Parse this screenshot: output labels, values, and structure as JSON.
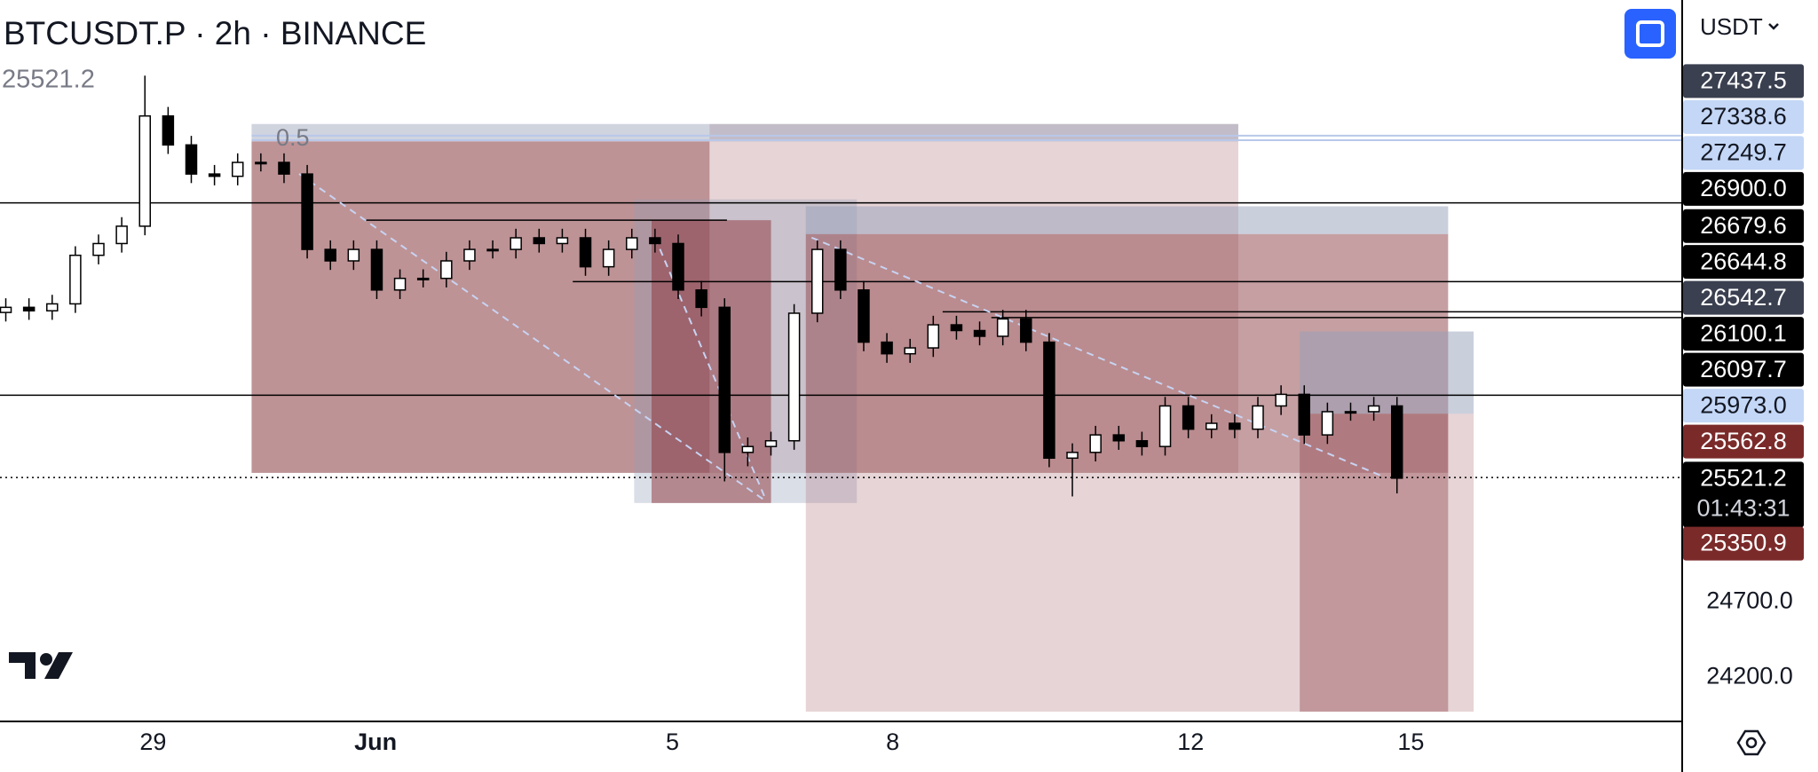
{
  "chart_data": {
    "type": "candlestick",
    "title": "BTCUSDT.P · 2h · BINANCE",
    "last_price": 25521.2,
    "currency": "USDT",
    "countdown": "01:43:31",
    "annotations": [
      "0.5"
    ],
    "xlim": [
      -0.25,
      72.3
    ],
    "ylim": [
      23908,
      28692
    ],
    "xticks": [
      {
        "value": 6.35,
        "label": "29"
      },
      {
        "value": 15.95,
        "label": "Jun"
      },
      {
        "value": 28.75,
        "label": "5"
      },
      {
        "value": 38.25,
        "label": "8"
      },
      {
        "value": 51.1,
        "label": "12"
      },
      {
        "value": 60.6,
        "label": "15"
      }
    ],
    "yticks": [
      {
        "value": 24700,
        "label": "24700.0"
      },
      {
        "value": 24200,
        "label": "24200.0"
      }
    ],
    "up_color": "#ffffff",
    "down_color": "#000000",
    "open": [
      26620,
      26654,
      26631,
      26677,
      26999,
      27077,
      27192,
      27923,
      27731,
      27538,
      27523,
      27615,
      27615,
      27538,
      27038,
      26962,
      27038,
      26769,
      26846,
      26846,
      26962,
      27038,
      27038,
      27115,
      27077,
      27115,
      26923,
      27038,
      27115,
      27077,
      26769,
      26654,
      25692,
      25731,
      25769,
      26615,
      27038,
      26769,
      26423,
      26346,
      26385,
      26538,
      26500,
      26462,
      26577,
      26423,
      25654,
      25692,
      25808,
      25769,
      25731,
      26000,
      25846,
      25885,
      25846,
      26000,
      26077,
      25808,
      25962,
      25962,
      26000
    ],
    "high": [
      26714,
      26714,
      26737,
      27059,
      27137,
      27252,
      28190,
      27983,
      27791,
      27598,
      27675,
      27675,
      27675,
      27598,
      27098,
      27098,
      27098,
      26906,
      26906,
      27022,
      27098,
      27098,
      27175,
      27175,
      27175,
      27175,
      27098,
      27175,
      27175,
      27137,
      26829,
      26714,
      25791,
      25829,
      26675,
      27098,
      27098,
      26829,
      26483,
      26445,
      26598,
      26598,
      26560,
      26637,
      26637,
      26483,
      25752,
      25868,
      25868,
      25829,
      26060,
      26060,
      25945,
      25945,
      26060,
      26137,
      26137,
      26022,
      26022,
      26060,
      26060
    ],
    "low": [
      26560,
      26571,
      26571,
      26617,
      26939,
      27017,
      27132,
      27671,
      27478,
      27463,
      27463,
      27555,
      27478,
      26978,
      26902,
      26902,
      26709,
      26709,
      26786,
      26786,
      26902,
      26978,
      26978,
      27017,
      27017,
      26863,
      26863,
      26978,
      27017,
      26709,
      26594,
      25500,
      25600,
      25671,
      25709,
      26555,
      26709,
      26363,
      26286,
      26286,
      26325,
      26440,
      26402,
      26402,
      26363,
      25594,
      25400,
      25632,
      25709,
      25671,
      25671,
      25786,
      25786,
      25786,
      25786,
      25940,
      25748,
      25748,
      25902,
      25902,
      25420
    ],
    "close": [
      26654,
      26631,
      26677,
      26999,
      27077,
      27192,
      27923,
      27731,
      27538,
      27523,
      27615,
      27615,
      27538,
      27038,
      26962,
      27038,
      26769,
      26846,
      26846,
      26962,
      27038,
      27038,
      27115,
      27077,
      27115,
      26923,
      27038,
      27115,
      27077,
      26769,
      26654,
      25692,
      25731,
      25769,
      26615,
      27038,
      26769,
      26423,
      26346,
      26385,
      26538,
      26500,
      26462,
      26577,
      26423,
      25654,
      25692,
      25808,
      25769,
      25731,
      26000,
      25846,
      25885,
      25846,
      26000,
      26077,
      25808,
      25962,
      25962,
      26000,
      25521.2
    ],
    "price_tags": [
      {
        "value": 27437.5,
        "color": "#3b4050",
        "text_color": "#ffffff"
      },
      {
        "value": 27338.6,
        "color": "#c4d7f6",
        "text_color": "#131722"
      },
      {
        "value": 27249.7,
        "color": "#c4d7f6",
        "text_color": "#131722"
      },
      {
        "value": 26900,
        "label": "26900.0",
        "color": "#000000",
        "text_color": "#ffffff"
      },
      {
        "value": 26679.6,
        "color": "#000000",
        "text_color": "#ffffff"
      },
      {
        "value": 26644.8,
        "color": "#000000",
        "text_color": "#ffffff"
      },
      {
        "value": 26542.7,
        "color": "#3b4050",
        "text_color": "#ffffff"
      },
      {
        "value": 26100.1,
        "color": "#000000",
        "text_color": "#ffffff"
      },
      {
        "value": 26097.7,
        "color": "#000000",
        "text_color": "#ffffff"
      },
      {
        "value": 25973,
        "label": "25973.0",
        "color": "#c4d7f6",
        "text_color": "#131722"
      },
      {
        "value": 25562.8,
        "color": "#7b2a2a",
        "text_color": "#ffffff"
      },
      {
        "value": 25521.2,
        "color": "#000000",
        "text_color": "#ffffff"
      },
      {
        "value": 25350.9,
        "color": "#7b2a2a",
        "text_color": "#ffffff"
      }
    ]
  }
}
